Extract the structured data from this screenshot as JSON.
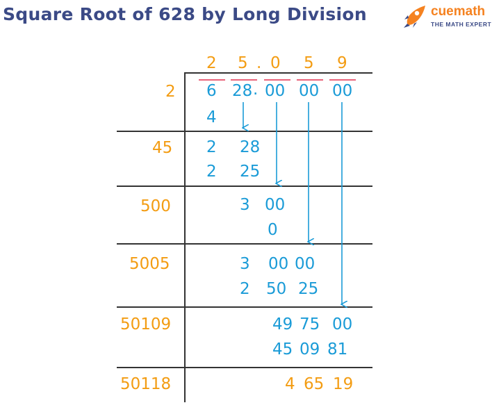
{
  "title": "Square Root of 628 by Long Division",
  "logo": {
    "name": "cuemath",
    "tagline": "THE MATH EXPERT"
  },
  "quotient": [
    "2",
    "5",
    ".",
    "0",
    "5",
    "9"
  ],
  "dividend": {
    "pairs": [
      "6",
      "28",
      "00",
      "00",
      "00"
    ],
    "decimal_point": "."
  },
  "divisors": [
    "2",
    "45",
    "500",
    "5005",
    "50109",
    "50118"
  ],
  "steps": [
    {
      "subtract": "4"
    },
    {
      "remainder": [
        "2",
        "28"
      ],
      "subtract": [
        "2",
        "25"
      ]
    },
    {
      "remainder": [
        "3",
        "00"
      ],
      "subtract": "0"
    },
    {
      "remainder": [
        "3",
        "00",
        "00"
      ],
      "subtract": [
        "2",
        "50",
        "25"
      ]
    },
    {
      "remainder": [
        "49",
        "75",
        "00"
      ],
      "subtract": [
        "45",
        "09",
        "81"
      ]
    },
    {
      "remainder": [
        "4",
        "65",
        "19"
      ]
    }
  ],
  "colors": {
    "title": "#3b4a86",
    "divisor": "#f39c12",
    "work": "#1a9bd7",
    "pair_mark": "#e8637a",
    "brand": "#f58220"
  }
}
